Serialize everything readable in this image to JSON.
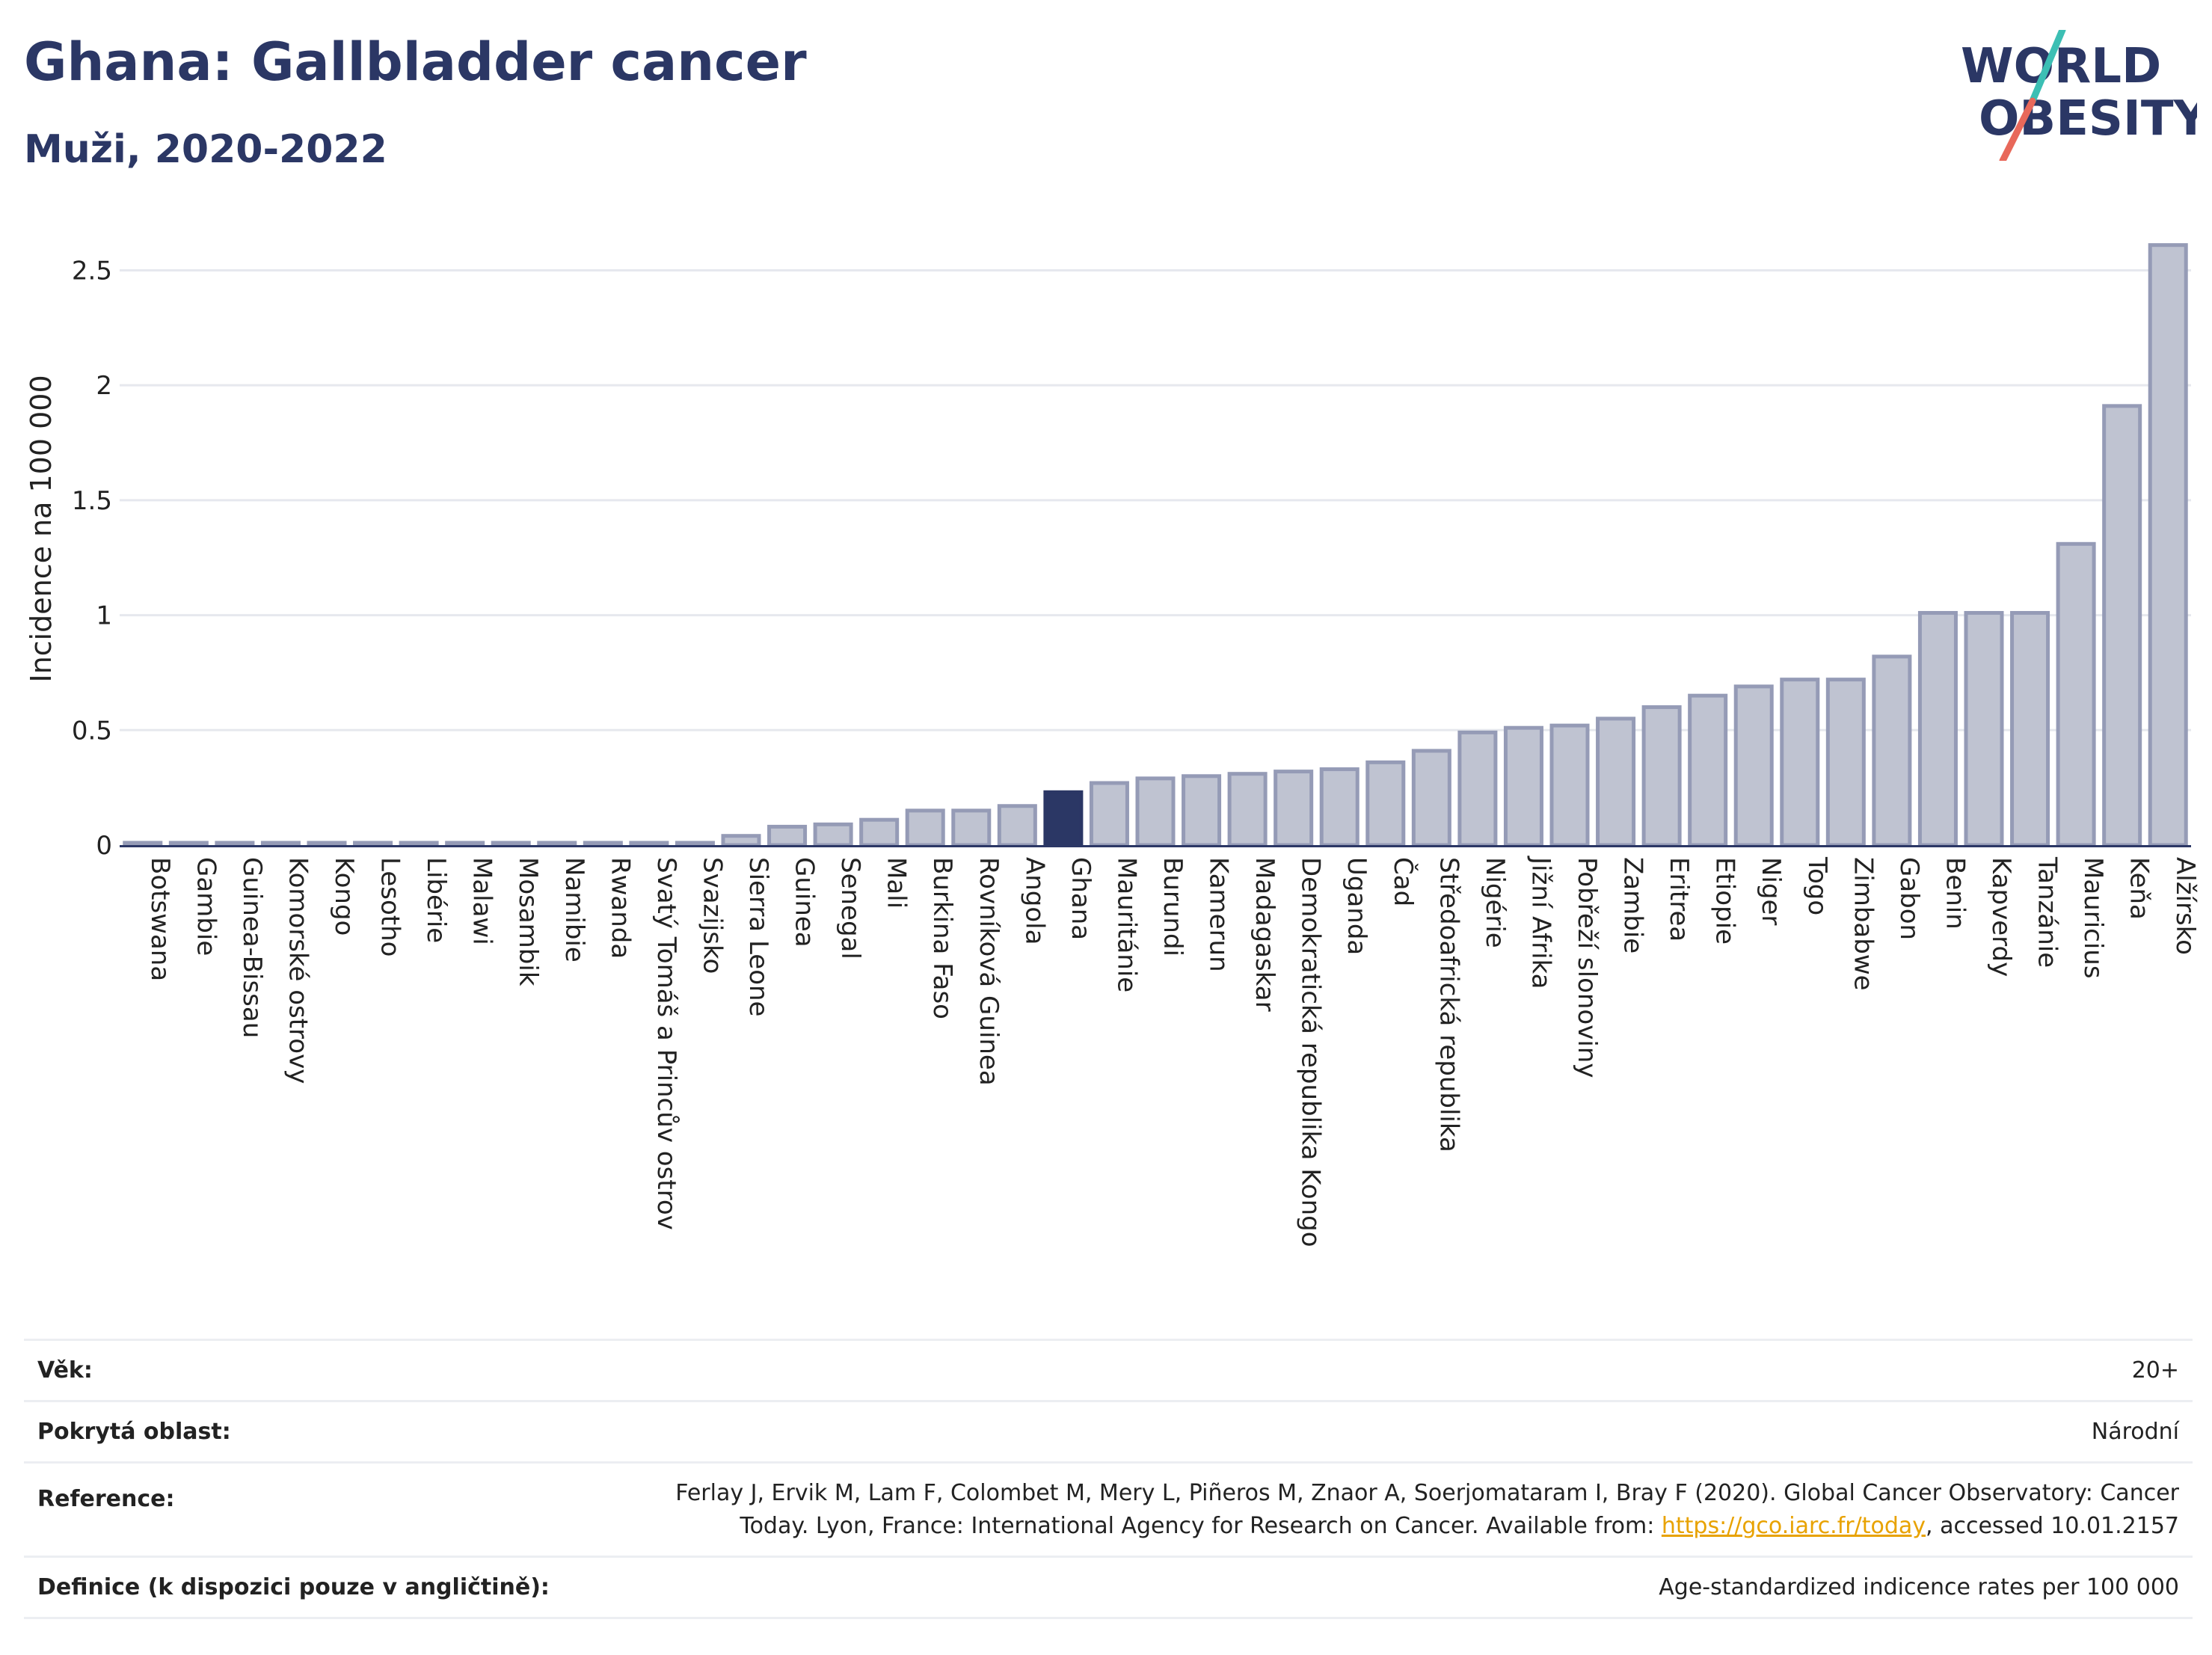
{
  "header": {
    "title": "Ghana: Gallbladder cancer",
    "subtitle": "Muži, 2020-2022"
  },
  "logo": {
    "line1": "WORLD",
    "line2": "OBESITY",
    "text_color": "#2b3765",
    "slash_color_top": "#3cbfb4",
    "slash_color_bottom": "#e8685a"
  },
  "colors": {
    "bar_fill": "#bfc3d1",
    "bar_stroke": "#959bb6",
    "highlight_fill": "#2b3765",
    "grid": "#e6e8ee",
    "axis": "#2b3765"
  },
  "chart_data": {
    "type": "bar",
    "ylabel": "Incidence na 100 000",
    "ylim": [
      0,
      2.7
    ],
    "yticks": [
      0,
      0.5,
      1,
      1.5,
      2,
      2.5
    ],
    "ytick_labels": [
      "0",
      "0.5",
      "1",
      "1.5",
      "2",
      "2.5"
    ],
    "grid": true,
    "highlight": "Ghana",
    "categories": [
      "Botswana",
      "Gambie",
      "Guinea-Bissau",
      "Komorské ostrovy",
      "Kongo",
      "Lesotho",
      "Libérie",
      "Malawi",
      "Mosambik",
      "Namibie",
      "Rwanda",
      "Svatý Tomáš a Princův ostrov",
      "Svazijsko",
      "Sierra Leone",
      "Guinea",
      "Senegal",
      "Mali",
      "Burkina Faso",
      "Rovníková Guinea",
      "Angola",
      "Ghana",
      "Mauritánie",
      "Burundi",
      "Kamerun",
      "Madagaskar",
      "Demokratická republika Kongo",
      "Uganda",
      "Čad",
      "Středoafrická republika",
      "Nigérie",
      "Jižní Afrika",
      "Pobřeží slonoviny",
      "Zambie",
      "Eritrea",
      "Etiopie",
      "Niger",
      "Togo",
      "Zimbabwe",
      "Gabon",
      "Benin",
      "Kapverdy",
      "Tanzánie",
      "Mauricius",
      "Keňa",
      "Alžírsko"
    ],
    "values": [
      0.01,
      0.01,
      0.01,
      0.01,
      0.01,
      0.01,
      0.01,
      0.01,
      0.01,
      0.01,
      0.01,
      0.01,
      0.01,
      0.04,
      0.08,
      0.09,
      0.11,
      0.15,
      0.15,
      0.17,
      0.23,
      0.27,
      0.29,
      0.3,
      0.31,
      0.32,
      0.33,
      0.36,
      0.41,
      0.49,
      0.51,
      0.52,
      0.55,
      0.6,
      0.65,
      0.69,
      0.72,
      0.72,
      0.82,
      1.01,
      1.01,
      1.01,
      1.31,
      1.91,
      2.61
    ]
  },
  "meta": {
    "rows": [
      {
        "label": "Věk:",
        "value": "20+"
      },
      {
        "label": "Pokrytá oblast:",
        "value": "Národní"
      },
      {
        "label": "Reference:",
        "value_line1": "Ferlay J, Ervik M, Lam F, Colombet M, Mery L, Piñeros M, Znaor A, Soerjomataram I, Bray F (2020). Global Cancer Observatory: Cancer",
        "value_line2_pre": "Today. Lyon, France: International Agency for Research on Cancer. Available from: ",
        "link": "https://gco.iarc.fr/today",
        "value_line2_post": ", accessed 10.01.2157"
      },
      {
        "label": "Definice (k dispozici pouze v angličtině):",
        "value": "Age-standardized indicence rates per 100 000"
      }
    ]
  }
}
